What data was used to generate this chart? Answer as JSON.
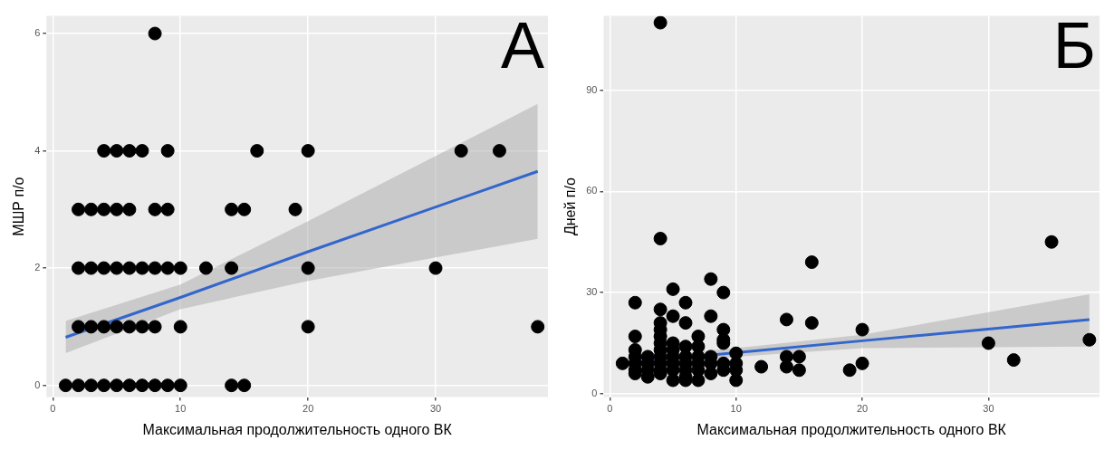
{
  "chart_data": [
    {
      "type": "scatter",
      "annotations": [
        "А"
      ],
      "xlabel": "Максимальная продолжительность одного ВК",
      "ylabel": "МШР п/о",
      "xlim": [
        -0.5,
        38.8
      ],
      "ylim": [
        -0.2,
        6.3
      ],
      "xticks": [
        0,
        10,
        20,
        30
      ],
      "yticks": [
        0,
        2,
        4,
        6
      ],
      "grid": true,
      "legend": false,
      "marker": "circle",
      "series": [
        {
          "color": "#000000",
          "x": [
            8,
            4,
            5,
            6,
            7,
            9,
            16,
            20,
            32,
            35,
            2,
            3,
            4,
            5,
            6,
            8,
            9,
            14,
            15,
            19,
            2,
            3,
            4,
            5,
            6,
            7,
            8,
            9,
            10,
            12,
            14,
            20,
            30,
            2,
            3,
            4,
            5,
            6,
            7,
            8,
            10,
            20,
            38,
            1,
            2,
            3,
            4,
            5,
            6,
            7,
            8,
            9,
            10,
            14,
            15
          ],
          "values": [
            6,
            4,
            4,
            4,
            4,
            4,
            4,
            4,
            4,
            4,
            3,
            3,
            3,
            3,
            3,
            3,
            3,
            3,
            3,
            3,
            2,
            2,
            2,
            2,
            2,
            2,
            2,
            2,
            2,
            2,
            2,
            2,
            2,
            1,
            1,
            1,
            1,
            1,
            1,
            1,
            1,
            1,
            1,
            0,
            0,
            0,
            0,
            0,
            0,
            0,
            0,
            0,
            0,
            0,
            0
          ]
        },
        {
          "type": "line",
          "marker": "none",
          "color": "#3366cc",
          "x": [
            1,
            10,
            20,
            38
          ],
          "values": [
            0.82,
            1.5,
            2.28,
            3.65
          ],
          "lower": [
            0.55,
            1.3,
            1.78,
            2.5
          ],
          "upper": [
            1.1,
            1.72,
            2.8,
            4.8
          ]
        }
      ]
    },
    {
      "type": "scatter",
      "annotations": [
        "Б"
      ],
      "xlabel": "Максимальная продолжительность одного ВК",
      "ylabel": "Дней п/о",
      "xlim": [
        -0.5,
        38.8
      ],
      "ylim": [
        -1,
        112
      ],
      "xticks": [
        0,
        10,
        20,
        30
      ],
      "yticks": [
        0,
        30,
        60,
        90
      ],
      "grid": true,
      "legend": false,
      "marker": "circle",
      "series": [
        {
          "color": "#000000",
          "x": [
            1,
            2,
            2,
            2,
            2,
            2,
            2,
            2,
            3,
            3,
            3,
            3,
            4,
            4,
            4,
            4,
            4,
            4,
            4,
            4,
            4,
            4,
            4,
            4,
            5,
            5,
            5,
            5,
            5,
            5,
            5,
            5,
            6,
            6,
            6,
            6,
            6,
            6,
            6,
            6,
            7,
            7,
            7,
            7,
            7,
            7,
            8,
            8,
            8,
            8,
            8,
            9,
            9,
            9,
            9,
            9,
            9,
            10,
            10,
            10,
            10,
            12,
            14,
            14,
            14,
            15,
            15,
            16,
            16,
            19,
            20,
            20,
            30,
            32,
            35,
            38
          ],
          "values": [
            9,
            27,
            17,
            13,
            11,
            9,
            7,
            6,
            11,
            9,
            7,
            5,
            110,
            46,
            25,
            21,
            19,
            17,
            15,
            13,
            11,
            9,
            7,
            6,
            31,
            23,
            15,
            13,
            11,
            9,
            7,
            4,
            27,
            21,
            14,
            11,
            9,
            7,
            5,
            4,
            17,
            14,
            11,
            9,
            7,
            4,
            34,
            23,
            11,
            9,
            6,
            30,
            19,
            16,
            15,
            9,
            7,
            12,
            9,
            7,
            4,
            8,
            22,
            11,
            8,
            11,
            7,
            39,
            21,
            7,
            19,
            9,
            15,
            10,
            45,
            16
          ]
        },
        {
          "type": "line",
          "marker": "none",
          "color": "#3366cc",
          "x": [
            1,
            10,
            20,
            38
          ],
          "values": [
            9,
            12.2,
            15.7,
            22
          ],
          "lower": [
            7.5,
            11,
            13.5,
            14
          ],
          "upper": [
            10.5,
            13.5,
            17.5,
            29.5
          ]
        }
      ]
    }
  ]
}
